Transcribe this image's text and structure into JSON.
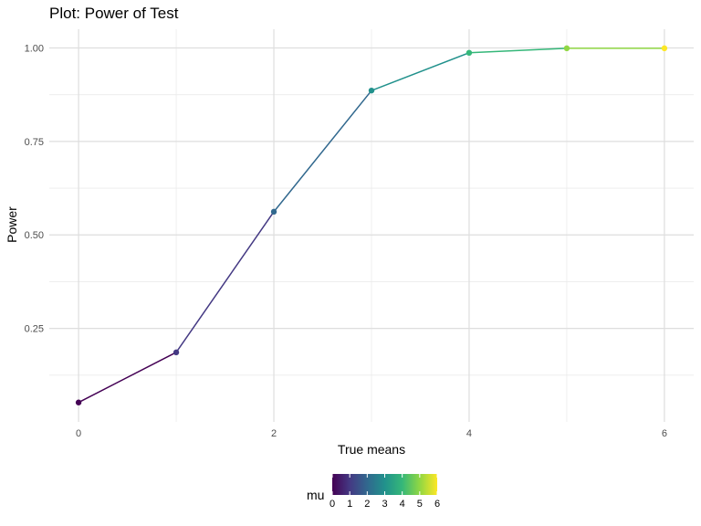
{
  "chart_data": {
    "type": "line",
    "title": "Plot: Power of Test",
    "xlabel": "True means",
    "ylabel": "Power",
    "x": [
      0,
      1,
      2,
      3,
      4,
      5,
      6
    ],
    "series": [
      {
        "values": [
          0.052,
          0.186,
          0.562,
          0.886,
          0.987,
          0.999,
          0.999
        ]
      }
    ],
    "xlim": [
      -0.3,
      6.3
    ],
    "ylim": [
      0.0,
      1.05
    ],
    "xticks": [
      0,
      2,
      4,
      6
    ],
    "xtick_labels": [
      "0",
      "2",
      "4",
      "6"
    ],
    "yticks": [
      0.25,
      0.5,
      0.75,
      1.0
    ],
    "ytick_labels": [
      "0.25",
      "0.50",
      "0.75",
      "1.00"
    ],
    "grid": true,
    "color_scale": {
      "name": "viridis",
      "variable": "mu",
      "range": [
        0,
        6
      ],
      "stops": [
        "#440154",
        "#443983",
        "#31688e",
        "#21918c",
        "#35b779",
        "#90d743",
        "#fde725"
      ]
    },
    "legend": {
      "title": "mu",
      "placement": "bottom",
      "tick_labels": [
        "0",
        "1",
        "2",
        "3",
        "4",
        "5",
        "6"
      ]
    }
  }
}
